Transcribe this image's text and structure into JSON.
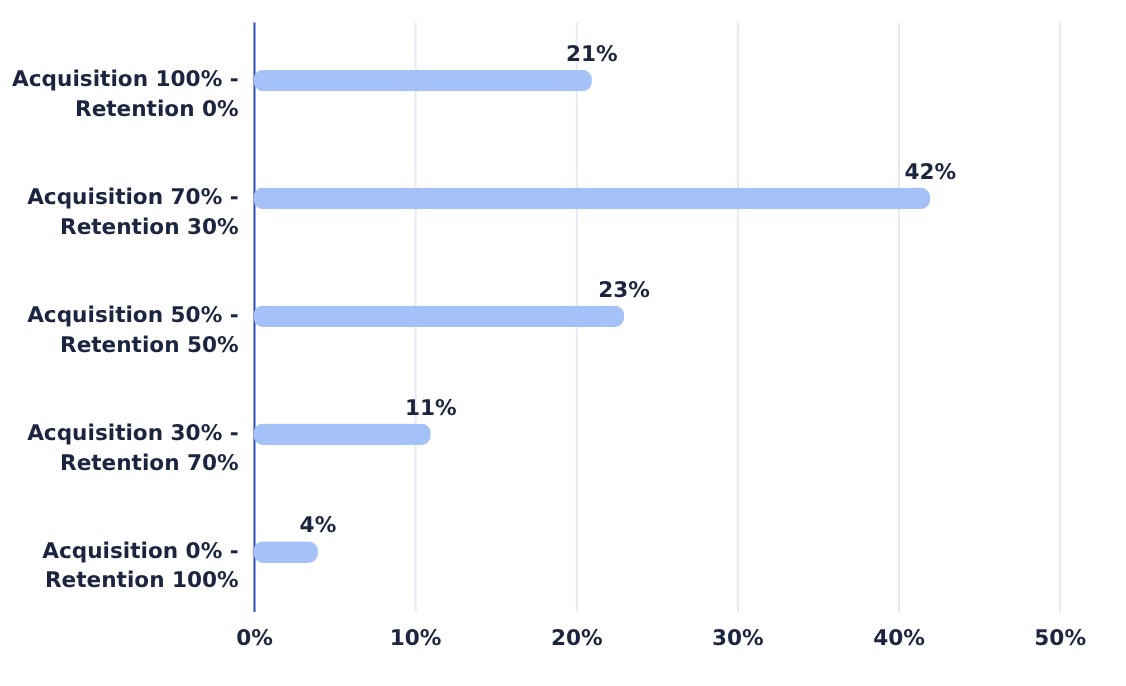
{
  "chart_data": {
    "type": "bar",
    "orientation": "horizontal",
    "categories": [
      "Acquisition 100% -\nRetention 0%",
      "Acquisition 70% -\nRetention 30%",
      "Acquisition 50% -\nRetention 50%",
      "Acquisition 30% -\nRetention 70%",
      "Acquisition 0% -\nRetention 100%"
    ],
    "values": [
      21,
      42,
      23,
      11,
      4
    ],
    "color": "#a4c2f7",
    "value_labels": [
      "21%",
      "42%",
      "23%",
      "11%",
      "4%"
    ],
    "xlim": [
      0,
      50
    ],
    "xticks": [
      {
        "value": 0,
        "label": "0%"
      },
      {
        "value": 10,
        "label": "10%"
      },
      {
        "value": 20,
        "label": "20%"
      },
      {
        "value": 30,
        "label": "30%"
      },
      {
        "value": 40,
        "label": "40%"
      },
      {
        "value": 50,
        "label": "50%"
      }
    ],
    "grid": "x"
  }
}
